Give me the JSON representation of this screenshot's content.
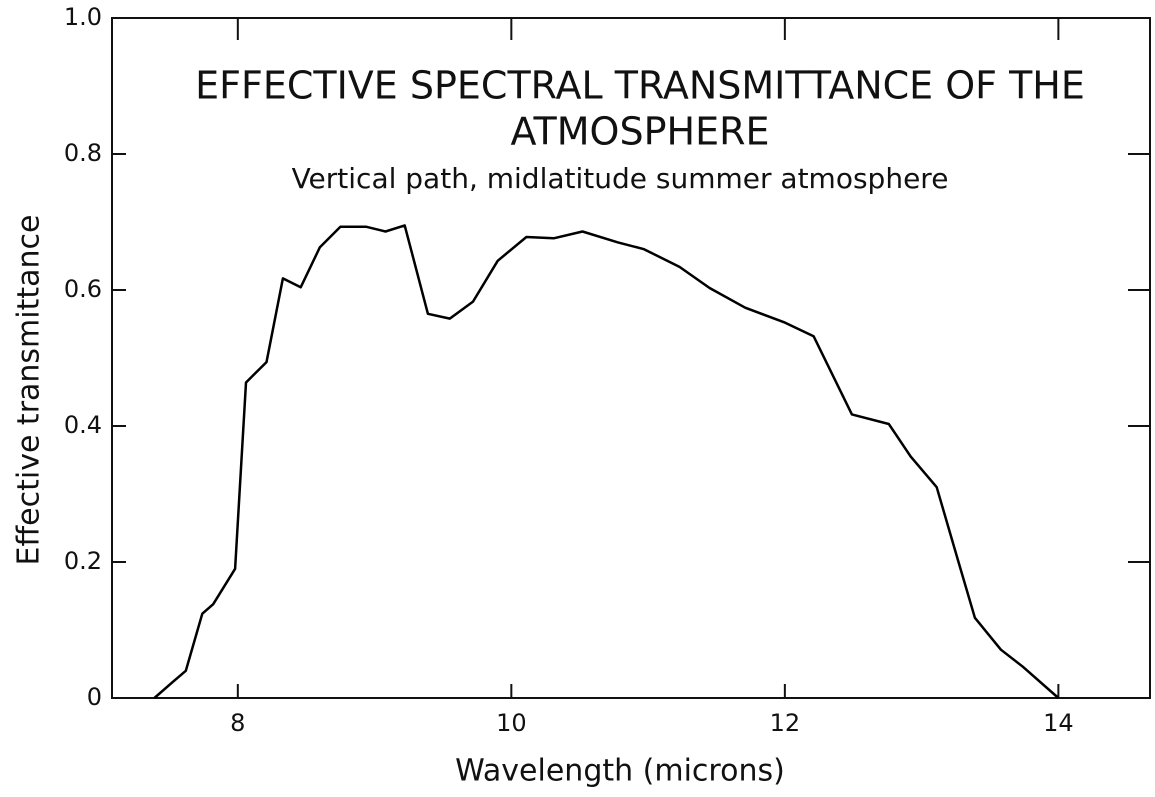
{
  "chart_data": {
    "type": "line",
    "title": [
      "EFFECTIVE SPECTRAL TRANSMITTANCE OF THE",
      "ATMOSPHERE"
    ],
    "subtitle": "Vertical path, midlatitude summer atmosphere",
    "x_label": "Wavelength (microns)",
    "y_label": "Effective transmittance",
    "x": [
      7.39,
      7.52,
      7.62,
      7.74,
      7.82,
      7.98,
      8.06,
      8.21,
      8.33,
      8.46,
      8.6,
      8.75,
      8.94,
      9.08,
      9.22,
      9.39,
      9.55,
      9.72,
      9.9,
      10.11,
      10.31,
      10.52,
      10.78,
      10.97,
      11.23,
      11.45,
      11.71,
      12.0,
      12.21,
      12.49,
      12.76,
      12.92,
      13.11,
      13.27,
      13.39,
      13.58,
      13.74,
      14.0
    ],
    "series": [
      {
        "name": "Effective transmittance",
        "color": "#000000",
        "values": [
          0,
          0.023,
          0.04,
          0.124,
          0.138,
          0.19,
          0.464,
          0.494,
          0.617,
          0.604,
          0.663,
          0.693,
          0.693,
          0.686,
          0.695,
          0.565,
          0.558,
          0.583,
          0.643,
          0.678,
          0.676,
          0.686,
          0.67,
          0.66,
          0.634,
          0.603,
          0.574,
          0.552,
          0.532,
          0.417,
          0.403,
          0.355,
          0.31,
          0.2,
          0.118,
          0.071,
          0.046,
          0
        ]
      }
    ],
    "xlim": [
      7.08,
      14.67
    ],
    "xticks": [
      8,
      10,
      12,
      14
    ],
    "ylim": [
      0,
      1
    ],
    "yticks": [
      0,
      0.2,
      0.4,
      0.6,
      0.8,
      {
        "value": 1,
        "label": "1.0"
      }
    ],
    "grid": false
  }
}
